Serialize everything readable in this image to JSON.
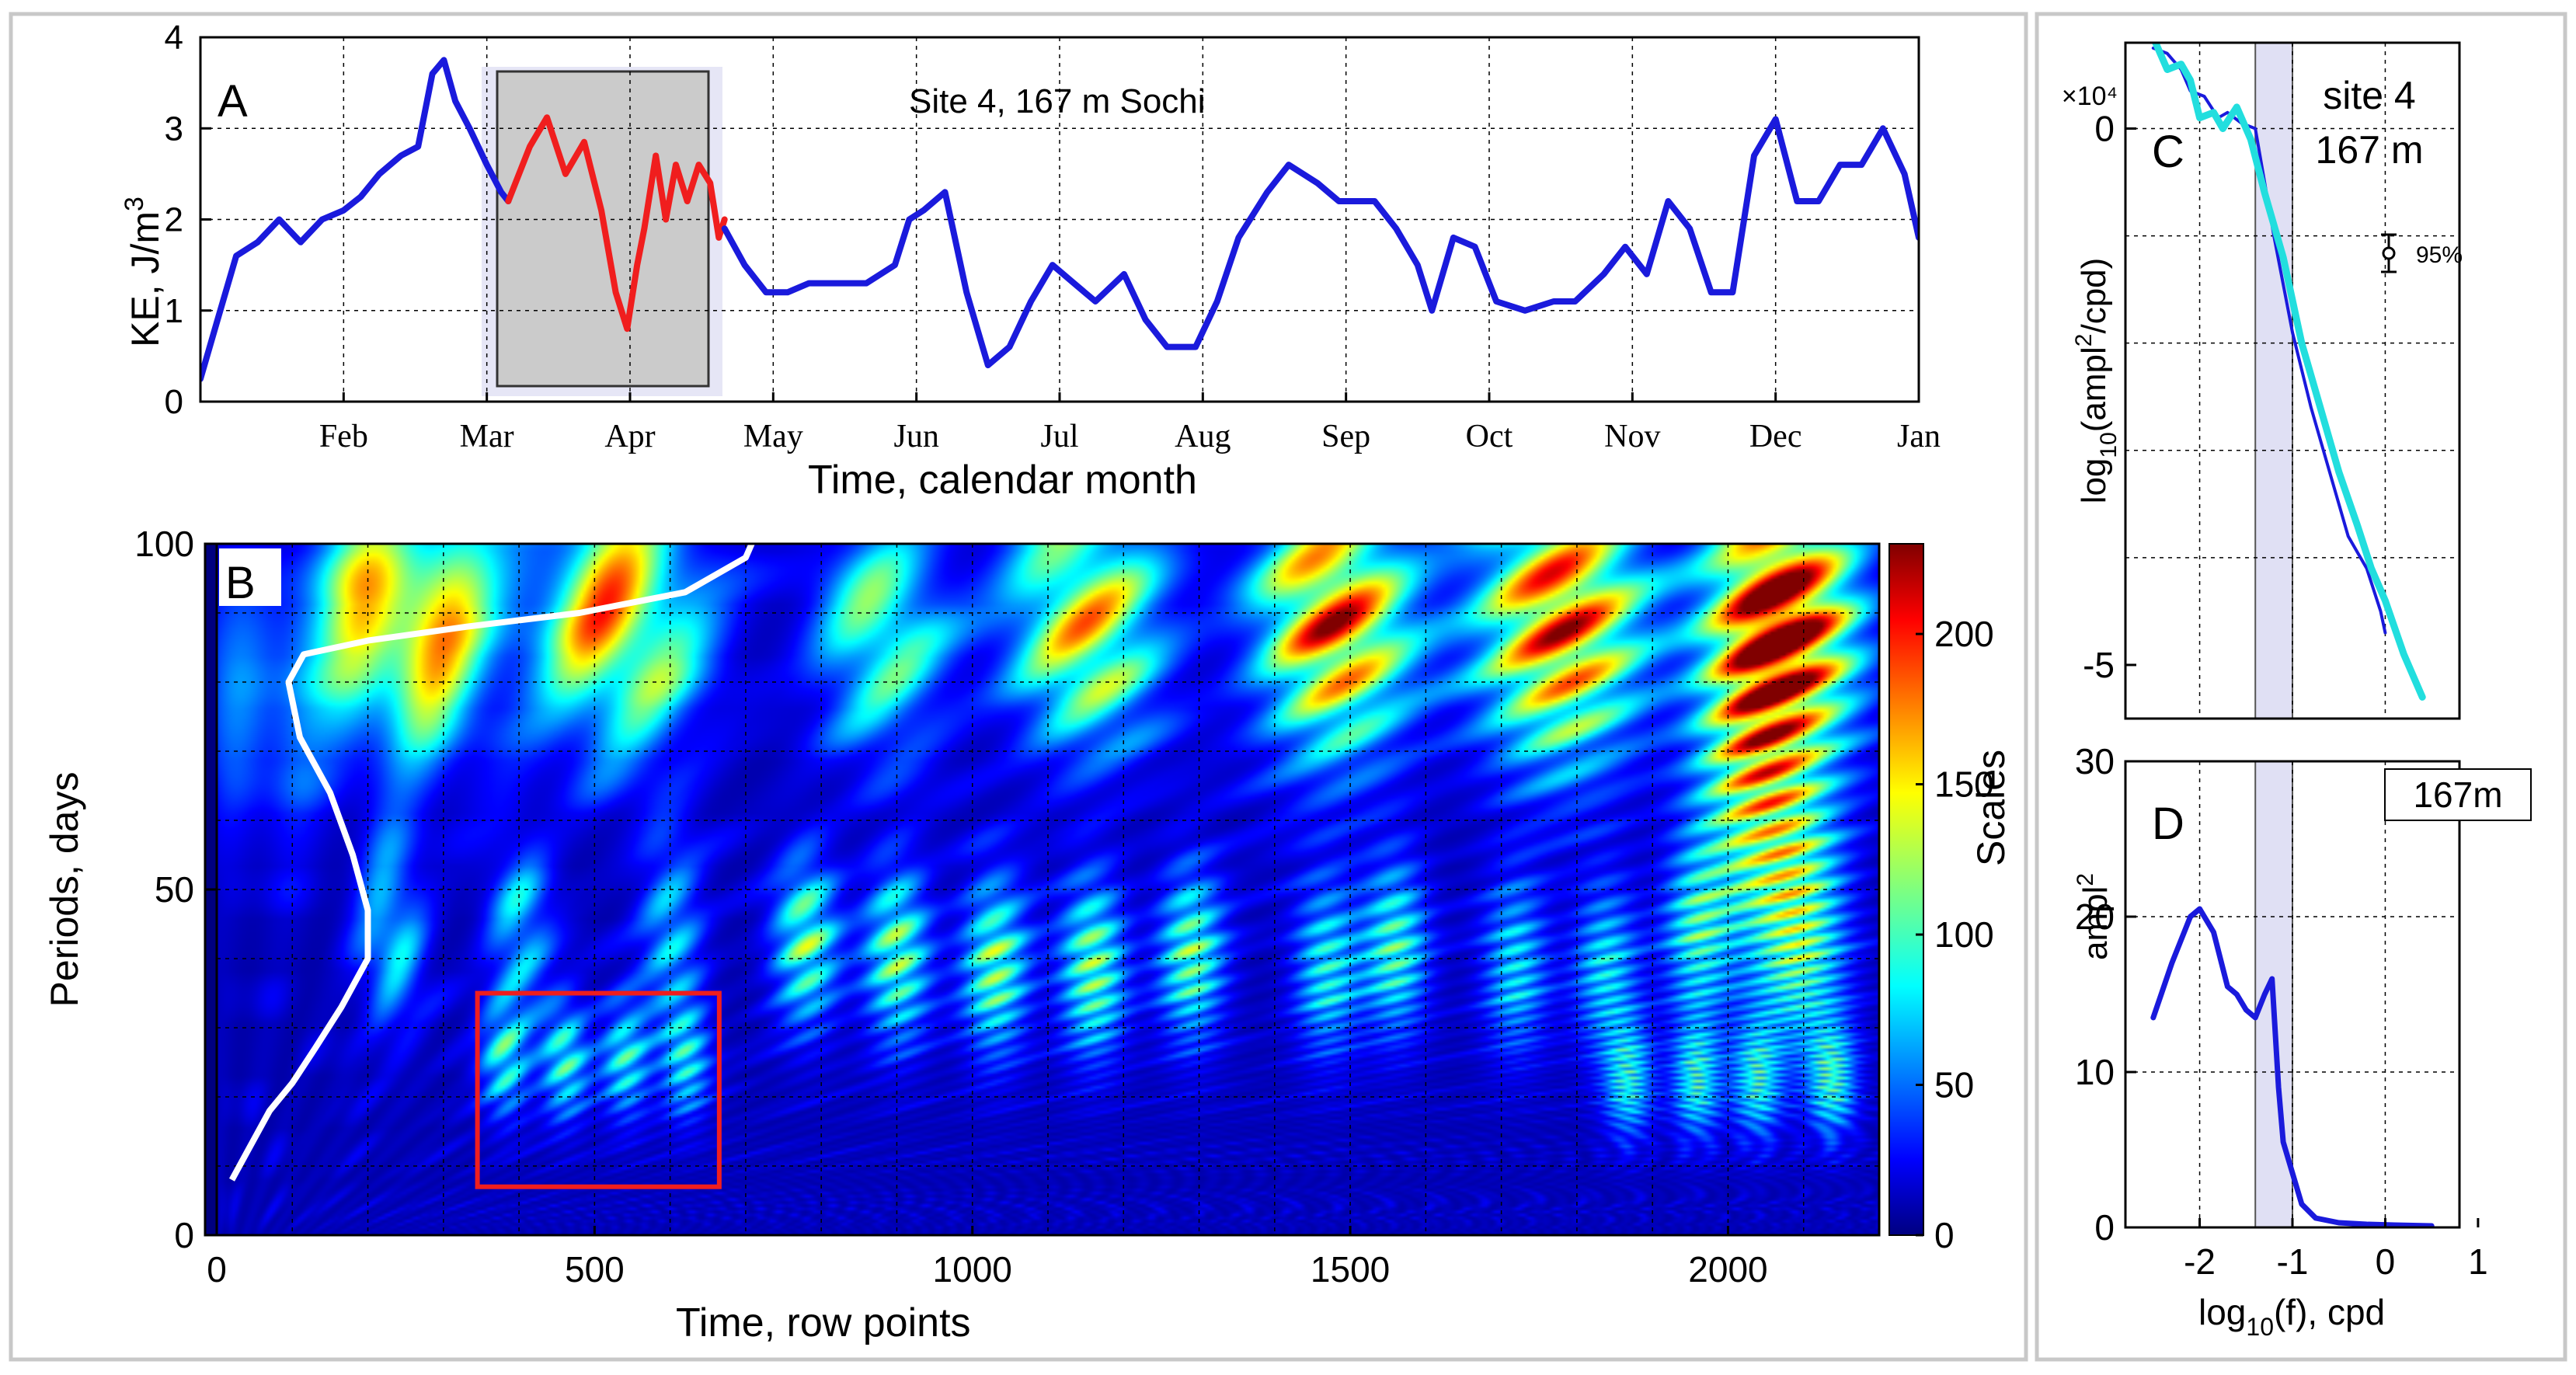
{
  "chart_data": [
    {
      "panel": "A",
      "type": "line",
      "title": "Site 4, 167 m  Sochi",
      "xlabel": "Time, calendar month",
      "ylabel": "KE, J/m3",
      "ylabel_main": "KE, J/m",
      "ylabel_sup": "3",
      "ylim": [
        0,
        4
      ],
      "yticks": [
        0,
        1,
        2,
        3,
        4
      ],
      "xlim": [
        0,
        12
      ],
      "month_labels": [
        "Feb",
        "Mar",
        "Apr",
        "May",
        "Jun",
        "Jul",
        "Aug",
        "Sep",
        "Oct",
        "Nov",
        "Dec",
        "Jan"
      ],
      "month_positions": [
        1,
        2,
        3,
        4,
        5,
        6,
        7,
        8,
        9,
        10,
        11,
        12
      ],
      "highlight_window": [
        2.13,
        3.66
      ],
      "series": [
        {
          "name": "KE",
          "color": "#1a1adc",
          "x": [
            0.0,
            0.12,
            0.25,
            0.4,
            0.55,
            0.7,
            0.85,
            1.0,
            1.12,
            1.25,
            1.4,
            1.52,
            1.62,
            1.7,
            1.78,
            1.88,
            2.0,
            2.1,
            2.15
          ],
          "y": [
            0.25,
            0.9,
            1.6,
            1.75,
            2.0,
            1.75,
            2.0,
            2.1,
            2.25,
            2.5,
            2.7,
            2.8,
            3.6,
            3.75,
            3.3,
            3.0,
            2.6,
            2.3,
            2.2
          ]
        },
        {
          "name": "KE (selected window)",
          "color": "#f01e1e",
          "x": [
            2.15,
            2.3,
            2.42,
            2.55,
            2.68,
            2.8,
            2.9,
            2.98,
            3.05,
            3.1,
            3.18,
            3.25,
            3.32,
            3.4,
            3.48,
            3.56,
            3.62,
            3.66
          ],
          "y": [
            2.2,
            2.8,
            3.12,
            2.5,
            2.85,
            2.1,
            1.2,
            0.8,
            1.5,
            1.9,
            2.7,
            2.0,
            2.6,
            2.2,
            2.6,
            2.4,
            1.8,
            2.0
          ]
        },
        {
          "name": "KE (continued)",
          "color": "#1a1adc",
          "x": [
            3.66,
            3.8,
            3.95,
            4.1,
            4.25,
            4.45,
            4.65,
            4.85,
            4.95,
            5.05,
            5.2,
            5.35,
            5.5,
            5.65,
            5.8,
            5.95,
            6.1,
            6.25,
            6.45,
            6.6,
            6.75,
            6.95,
            7.1,
            7.25,
            7.45,
            7.6,
            7.8,
            7.95,
            8.1,
            8.2,
            8.35,
            8.5,
            8.6,
            8.75,
            8.9,
            9.05,
            9.25,
            9.45,
            9.6,
            9.8,
            9.95,
            10.1,
            10.25,
            10.4,
            10.55,
            10.7,
            10.85,
            11.0,
            11.15,
            11.3,
            11.45,
            11.6,
            11.75,
            11.9,
            12.0
          ],
          "y": [
            1.9,
            1.5,
            1.2,
            1.2,
            1.3,
            1.3,
            1.3,
            1.5,
            2.0,
            2.1,
            2.3,
            1.2,
            0.4,
            0.6,
            1.1,
            1.5,
            1.3,
            1.1,
            1.4,
            0.9,
            0.6,
            0.6,
            1.1,
            1.8,
            2.3,
            2.6,
            2.4,
            2.2,
            2.2,
            2.2,
            1.9,
            1.5,
            1.0,
            1.8,
            1.7,
            1.1,
            1.0,
            1.1,
            1.1,
            1.4,
            1.7,
            1.4,
            2.2,
            1.9,
            1.2,
            1.2,
            2.7,
            3.1,
            2.2,
            2.2,
            2.6,
            2.6,
            3.0,
            2.5,
            1.8
          ]
        }
      ]
    },
    {
      "panel": "B",
      "type": "heatmap",
      "xlabel": "Time, row points",
      "ylabel": "Periods, days",
      "colorbar_label": "Scales",
      "xlim": [
        0,
        2200
      ],
      "xticks": [
        0,
        500,
        1000,
        1500,
        2000
      ],
      "ylim": [
        0,
        100
      ],
      "yticks": [
        0,
        50,
        100
      ],
      "colorbar_range": [
        0,
        230
      ],
      "colorbar_ticks": [
        0,
        50,
        100,
        150,
        200
      ],
      "highlight_box": {
        "x": [
          345,
          665
        ],
        "y": [
          7,
          35
        ]
      },
      "blobs": [
        {
          "t": 250,
          "p": 92,
          "v": 230,
          "wt": 75,
          "wp": 13
        },
        {
          "t": 530,
          "p": 92,
          "v": 200,
          "wt": 75,
          "wp": 13
        },
        {
          "t": 880,
          "p": 90,
          "v": 130,
          "wt": 60,
          "wp": 12
        },
        {
          "t": 1150,
          "p": 92,
          "v": 180,
          "wt": 70,
          "wp": 13
        },
        {
          "t": 1480,
          "p": 92,
          "v": 225,
          "wt": 70,
          "wp": 14
        },
        {
          "t": 1780,
          "p": 92,
          "v": 235,
          "wt": 75,
          "wp": 14
        },
        {
          "t": 2080,
          "p": 93,
          "v": 245,
          "wt": 65,
          "wp": 14
        },
        {
          "t": 2040,
          "p": 70,
          "v": 160,
          "wt": 55,
          "wp": 18
        },
        {
          "t": 60,
          "p": 80,
          "v": 70,
          "wt": 50,
          "wp": 14
        },
        {
          "t": 780,
          "p": 44,
          "v": 120,
          "wt": 30,
          "wp": 9
        },
        {
          "t": 900,
          "p": 42,
          "v": 130,
          "wt": 30,
          "wp": 9
        },
        {
          "t": 1030,
          "p": 40,
          "v": 125,
          "wt": 30,
          "wp": 9
        },
        {
          "t": 1160,
          "p": 40,
          "v": 130,
          "wt": 30,
          "wp": 9
        },
        {
          "t": 1290,
          "p": 42,
          "v": 120,
          "wt": 30,
          "wp": 9
        },
        {
          "t": 1470,
          "p": 40,
          "v": 95,
          "wt": 30,
          "wp": 9
        },
        {
          "t": 1560,
          "p": 43,
          "v": 110,
          "wt": 30,
          "wp": 9
        },
        {
          "t": 1720,
          "p": 40,
          "v": 85,
          "wt": 30,
          "wp": 9
        },
        {
          "t": 1840,
          "p": 40,
          "v": 85,
          "wt": 30,
          "wp": 9
        },
        {
          "t": 1960,
          "p": 45,
          "v": 90,
          "wt": 30,
          "wp": 9
        },
        {
          "t": 2100,
          "p": 45,
          "v": 110,
          "wt": 40,
          "wp": 12
        },
        {
          "t": 230,
          "p": 45,
          "v": 90,
          "wt": 30,
          "wp": 10
        },
        {
          "t": 400,
          "p": 45,
          "v": 80,
          "wt": 30,
          "wp": 10
        },
        {
          "t": 600,
          "p": 45,
          "v": 80,
          "wt": 30,
          "wp": 10
        },
        {
          "t": 380,
          "p": 26,
          "v": 95,
          "wt": 22,
          "wp": 6
        },
        {
          "t": 460,
          "p": 26,
          "v": 105,
          "wt": 22,
          "wp": 6
        },
        {
          "t": 540,
          "p": 26,
          "v": 95,
          "wt": 22,
          "wp": 6
        },
        {
          "t": 620,
          "p": 26,
          "v": 90,
          "wt": 22,
          "wp": 6
        },
        {
          "t": 1870,
          "p": 23,
          "v": 95,
          "wt": 22,
          "wp": 6
        },
        {
          "t": 1960,
          "p": 23,
          "v": 100,
          "wt": 22,
          "wp": 6
        },
        {
          "t": 2040,
          "p": 23,
          "v": 95,
          "wt": 22,
          "wp": 6
        },
        {
          "t": 2140,
          "p": 23,
          "v": 100,
          "wt": 22,
          "wp": 6
        }
      ],
      "overlay_line": {
        "name": "white curve",
        "t": [
          20,
          40,
          70,
          100,
          130,
          165,
          200,
          200,
          180,
          150,
          110,
          95,
          115,
          200,
          330,
          480,
          620,
          700,
          720
        ],
        "p": [
          8,
          12,
          18,
          22,
          27,
          33,
          40,
          47,
          55,
          64,
          72,
          80,
          84,
          86,
          88,
          90,
          93,
          98,
          103
        ]
      }
    },
    {
      "panel": "C",
      "type": "line",
      "title": "site 4\n167 m",
      "title_line1": "site 4",
      "title_line2": "167 m",
      "xlabel": "log10(f), cpd",
      "ylabel": "log10(ampl2/cpd)",
      "y_multiplier": "×10⁴",
      "xlim": [
        -2.8,
        0.8
      ],
      "ylim": [
        -5.5,
        0.8
      ],
      "yticks": [
        -5,
        0
      ],
      "shaded_band": [
        -1.4,
        -1.0
      ],
      "confidence_label": "95%",
      "series": [
        {
          "name": "spectrum (raw)",
          "color": "#1a1adc",
          "x": [
            -2.5,
            -2.35,
            -2.2,
            -2.1,
            -1.95,
            -1.8,
            -1.7,
            -1.55,
            -1.4,
            -1.2,
            -1.0,
            -0.8,
            -0.6,
            -0.4,
            -0.2,
            -0.05,
            0.0
          ],
          "y": [
            0.75,
            0.7,
            0.55,
            0.35,
            0.3,
            0.1,
            0.15,
            0.05,
            0.0,
            -1.0,
            -1.9,
            -2.6,
            -3.2,
            -3.8,
            -4.1,
            -4.5,
            -4.7
          ]
        },
        {
          "name": "spectrum (smoothed)",
          "color": "#22dede",
          "x": [
            -2.5,
            -2.35,
            -2.2,
            -2.1,
            -2.0,
            -1.85,
            -1.75,
            -1.6,
            -1.45,
            -1.3,
            -1.1,
            -0.9,
            -0.7,
            -0.5,
            -0.3,
            -0.15,
            0.0,
            0.2,
            0.4
          ],
          "y": [
            0.85,
            0.55,
            0.6,
            0.45,
            0.1,
            0.15,
            0.0,
            0.2,
            -0.1,
            -0.6,
            -1.2,
            -2.0,
            -2.6,
            -3.2,
            -3.7,
            -4.1,
            -4.4,
            -4.9,
            -5.3
          ]
        }
      ]
    },
    {
      "panel": "D",
      "type": "line",
      "label": "167m",
      "xlabel": "log10(f), cpd",
      "ylabel": "ampl2",
      "xlim": [
        -2.8,
        0.8
      ],
      "xticks": [
        -2,
        -1,
        0,
        1
      ],
      "ylim": [
        0,
        30
      ],
      "yticks": [
        0,
        10,
        20,
        30
      ],
      "shaded_band": [
        -1.4,
        -1.0
      ],
      "series": [
        {
          "name": "ampl2",
          "color": "#1a1adc",
          "x": [
            -2.5,
            -2.3,
            -2.1,
            -2.0,
            -1.85,
            -1.7,
            -1.6,
            -1.5,
            -1.4,
            -1.3,
            -1.22,
            -1.15,
            -1.1,
            -1.0,
            -0.9,
            -0.75,
            -0.5,
            -0.2,
            0.1,
            0.5
          ],
          "y": [
            13.5,
            17.0,
            20.0,
            20.5,
            19.0,
            15.5,
            15.0,
            14.0,
            13.5,
            15.0,
            16.0,
            9.0,
            5.5,
            3.5,
            1.5,
            0.6,
            0.3,
            0.2,
            0.15,
            0.1
          ]
        }
      ]
    }
  ],
  "labels": {
    "panel_a": "A",
    "panel_b": "B",
    "panel_c": "C",
    "panel_d": "D",
    "log10": "log",
    "sub10": "10",
    "c_ylabel_ampl": "(ampl",
    "c_ylabel_sup": "2",
    "c_ylabel_rest": "/cpd)",
    "d_ylabel": "ampl",
    "d_ylabel_sup": "2",
    "cd_xlabel_tail": "(f), cpd"
  },
  "colors": {
    "frame": "#c8c8c8",
    "box_red": "#f01e1e",
    "window_fill": "#cbcbcb",
    "window_halo": "#e6e6f6",
    "band_fill": "#e0e0f4"
  }
}
